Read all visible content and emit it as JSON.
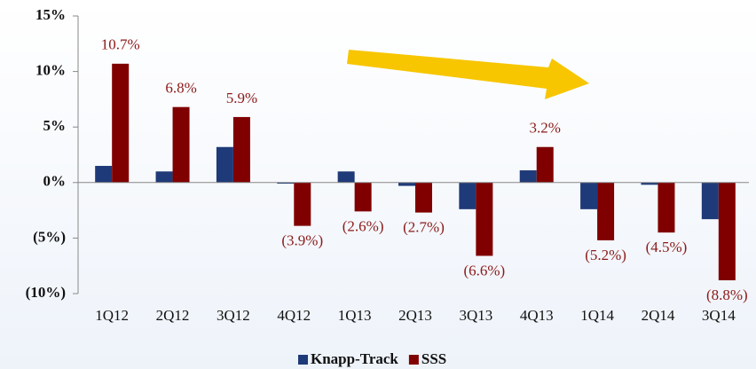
{
  "chart_data": {
    "type": "bar",
    "categories": [
      "1Q12",
      "2Q12",
      "3Q12",
      "4Q12",
      "1Q13",
      "2Q13",
      "3Q13",
      "4Q13",
      "1Q14",
      "2Q14",
      "3Q14"
    ],
    "series": [
      {
        "name": "Knapp-Track",
        "color": "#1f3a78",
        "values": [
          1.5,
          1.0,
          3.2,
          -0.1,
          1.0,
          -0.3,
          -2.4,
          1.1,
          -2.4,
          -0.2,
          -3.3
        ]
      },
      {
        "name": "SSS",
        "color": "#800000",
        "values": [
          10.7,
          6.8,
          5.9,
          -3.9,
          -2.6,
          -2.7,
          -6.6,
          3.2,
          -5.2,
          -4.5,
          -8.8
        ],
        "value_labels": [
          "10.7%",
          "6.8%",
          "5.9%",
          "(3.9%)",
          "(2.6%)",
          "(2.7%)",
          "(6.6%)",
          "3.2%",
          "(5.2%)",
          "(4.5%)",
          "(8.8%)"
        ]
      }
    ],
    "ylim": [
      -10,
      15
    ],
    "yticks": [
      {
        "value": -10,
        "label": "(10%)"
      },
      {
        "value": -5,
        "label": "(5%)"
      },
      {
        "value": 0,
        "label": "0%"
      },
      {
        "value": 5,
        "label": "5%"
      },
      {
        "value": 10,
        "label": "10%"
      },
      {
        "value": 15,
        "label": "15%"
      }
    ],
    "legend": "bottom"
  }
}
